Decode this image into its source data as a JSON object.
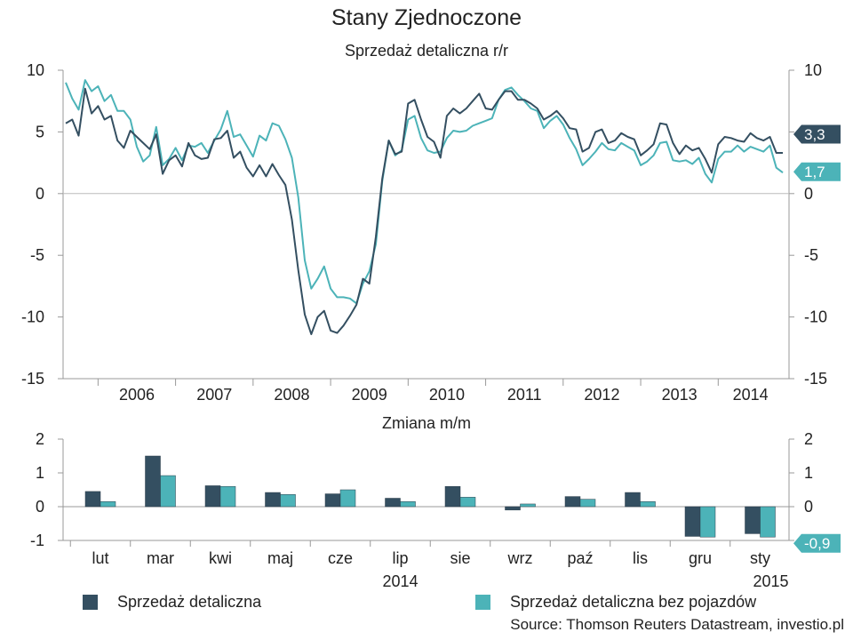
{
  "title": "Stany Zjednoczone",
  "colors": {
    "retail": "#344f61",
    "ex_auto": "#4cb3b8",
    "axis": "#999999"
  },
  "chart_data": [
    {
      "type": "line",
      "title": "Sprzedaż detaliczna r/r",
      "x_labels": [
        "2006",
        "2007",
        "2008",
        "2009",
        "2010",
        "2011",
        "2012",
        "2013",
        "2014"
      ],
      "ylim": [
        -15,
        10
      ],
      "yticks": [
        "10",
        "5",
        "0",
        "-5",
        "-10",
        "-15"
      ],
      "grid": false,
      "x_start": "2005-08",
      "x_end": "2015-01",
      "series": [
        {
          "name": "Sprzedaż detaliczna",
          "last_label": "3,3",
          "values": [
            5.7,
            6.0,
            4.7,
            8.5,
            6.5,
            7.1,
            6.0,
            6.3,
            4.3,
            3.7,
            5.1,
            4.6,
            4.1,
            3.6,
            4.8,
            1.6,
            2.7,
            3.1,
            2.2,
            4.1,
            3.1,
            2.8,
            2.9,
            4.4,
            4.5,
            5.1,
            2.9,
            3.4,
            2.1,
            1.4,
            2.3,
            1.4,
            2.4,
            1.5,
            0.7,
            -2.1,
            -6.2,
            -9.8,
            -11.4,
            -10.0,
            -9.5,
            -11.1,
            -11.3,
            -10.7,
            -9.9,
            -9.0,
            -6.9,
            -7.3,
            -3.5,
            1.2,
            4.3,
            3.2,
            3.4,
            7.3,
            7.6,
            6.0,
            4.6,
            4.2,
            2.9,
            6.3,
            6.9,
            6.5,
            6.9,
            7.5,
            8.1,
            6.9,
            6.8,
            7.6,
            8.3,
            8.3,
            7.6,
            7.6,
            7.3,
            6.9,
            6.0,
            6.3,
            6.7,
            6.1,
            5.3,
            5.2,
            3.4,
            3.7,
            5.0,
            5.2,
            4.1,
            4.3,
            4.9,
            4.6,
            4.4,
            3.1,
            3.5,
            4.0,
            5.7,
            5.6,
            4.1,
            3.2,
            3.9,
            3.5,
            3.7,
            2.8,
            1.7,
            4.0,
            4.6,
            4.5,
            4.3,
            4.2,
            4.9,
            4.5,
            4.3,
            4.6,
            3.3,
            3.3
          ]
        },
        {
          "name": "Sprzedaż detaliczna bez pojazdów",
          "last_label": "1,7",
          "values": [
            9.0,
            7.7,
            6.8,
            9.2,
            8.3,
            8.7,
            7.5,
            8.0,
            6.7,
            6.7,
            6.0,
            3.8,
            2.6,
            3.1,
            5.4,
            2.3,
            2.8,
            3.7,
            2.7,
            3.9,
            3.8,
            4.1,
            3.3,
            4.3,
            5.2,
            6.7,
            4.6,
            4.8,
            3.9,
            3.0,
            4.7,
            4.3,
            5.7,
            5.5,
            4.4,
            2.9,
            -0.3,
            -5.4,
            -7.7,
            -6.9,
            -5.9,
            -7.7,
            -8.4,
            -8.4,
            -8.5,
            -8.9,
            -7.3,
            -6.3,
            -4.1,
            1.0,
            4.3,
            3.1,
            3.5,
            6.0,
            6.3,
            4.5,
            3.5,
            3.3,
            3.4,
            4.5,
            5.1,
            5.0,
            5.1,
            5.5,
            5.7,
            5.9,
            6.1,
            7.6,
            8.4,
            8.6,
            8.0,
            7.5,
            6.9,
            6.7,
            5.3,
            5.9,
            6.3,
            5.6,
            4.5,
            3.6,
            2.3,
            2.8,
            3.4,
            4.1,
            3.6,
            3.5,
            4.1,
            3.8,
            3.5,
            2.3,
            2.6,
            3.1,
            4.1,
            4.2,
            2.7,
            2.6,
            2.7,
            2.4,
            2.9,
            1.6,
            0.9,
            2.8,
            3.4,
            3.4,
            3.9,
            3.4,
            3.8,
            3.6,
            3.4,
            3.9,
            2.1,
            1.7
          ]
        }
      ]
    },
    {
      "type": "bar",
      "title": "Zmiana m/m",
      "categories": [
        "lut",
        "mar",
        "kwi",
        "maj",
        "cze",
        "lip",
        "sie",
        "wrz",
        "paź",
        "lis",
        "gru",
        "sty"
      ],
      "year_labels": [
        "2014",
        "2015"
      ],
      "ylim": [
        -1,
        2
      ],
      "yticks": [
        "2",
        "1",
        "0",
        "-1"
      ],
      "series": [
        {
          "name": "Sprzedaż detaliczna",
          "values": [
            0.45,
            1.5,
            0.62,
            0.42,
            0.38,
            0.25,
            0.6,
            -0.1,
            0.3,
            0.42,
            -0.88,
            -0.8
          ]
        },
        {
          "name": "Sprzedaż detaliczna bez pojazdów",
          "last_label": "-0,9",
          "values": [
            0.15,
            0.92,
            0.6,
            0.36,
            0.5,
            0.15,
            0.28,
            0.08,
            0.22,
            0.15,
            -0.9,
            -0.9
          ]
        }
      ]
    }
  ],
  "legend": {
    "retail": "Sprzedaż detaliczna",
    "ex_auto": "Sprzedaż detaliczna bez pojazdów"
  },
  "source": "Source: Thomson Reuters Datastream, investio.pl"
}
